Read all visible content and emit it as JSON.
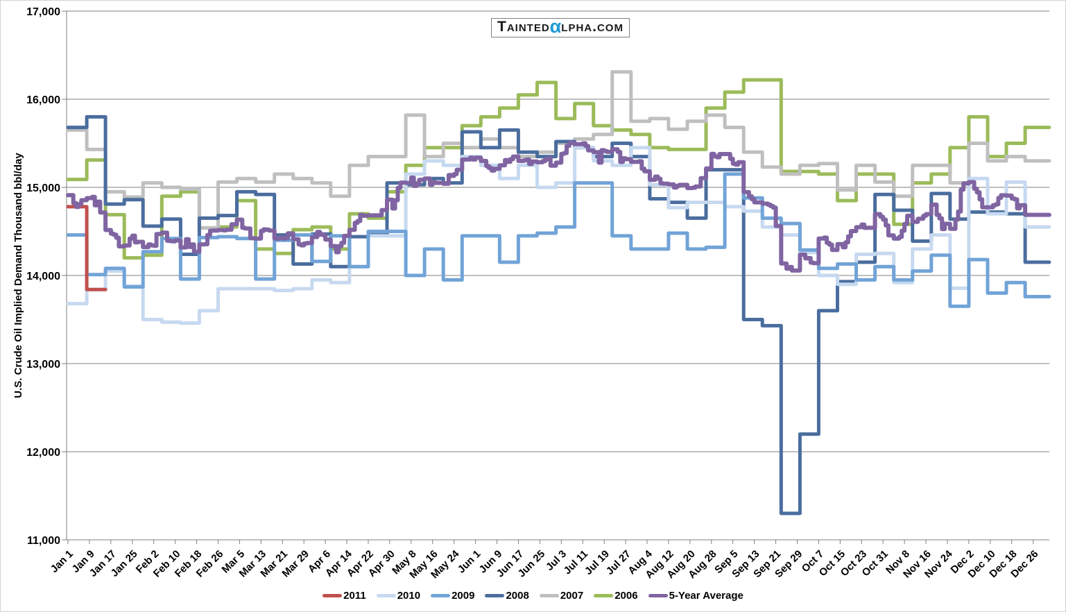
{
  "logo": {
    "part1": "Tainted",
    "alpha": "α",
    "part2": "lpha.com",
    "alpha_color": "#1e9ad6"
  },
  "y_axis": {
    "title": "U.S. Crude Oil Implied Demand Thousand bbl/day",
    "ticks": [
      "17,000",
      "16,000",
      "15,000",
      "14,000",
      "13,000",
      "12,000",
      "11,000"
    ],
    "min": 11000,
    "max": 17000,
    "step": 1000
  },
  "x_axis": {
    "labels": [
      "Jan 1",
      "Jan 9",
      "Jan 17",
      "Jan 25",
      "Feb 2",
      "Feb 10",
      "Feb 18",
      "Feb 26",
      "Mar 5",
      "Mar 13",
      "Mar 21",
      "Mar 29",
      "Apr 6",
      "Apr 14",
      "Apr 22",
      "Apr 30",
      "May 8",
      "May 16",
      "May 24",
      "Jun 1",
      "Jun 9",
      "Jun 17",
      "Jun 25",
      "Jul 3",
      "Jul 11",
      "Jul 19",
      "Jul 27",
      "Aug 4",
      "Aug 12",
      "Aug 20",
      "Aug 28",
      "Sep 5",
      "Sep 13",
      "Sep 21",
      "Sep 29",
      "Oct 7",
      "Oct 15",
      "Oct 23",
      "Oct 31",
      "Nov 8",
      "Nov 16",
      "Nov 24",
      "Dec 2",
      "Dec 10",
      "Dec 18",
      "Dec 26"
    ],
    "label_every_days": 8,
    "days_in_year": 366
  },
  "colors": {
    "grid": "#7f7f7f",
    "axis_text": "#000000",
    "background": "#ffffff"
  },
  "chart_data": {
    "type": "line",
    "title": "",
    "xlabel": "",
    "ylabel": "U.S. Crude Oil Implied Demand Thousand bbl/day",
    "ylim": [
      11000,
      17000
    ],
    "grid": true,
    "legend_position": "bottom",
    "x_description": "Daily step chart of weekly values, Jan 1 through Dec 31 (366 days); each weekly value held constant for 7 days",
    "series": [
      {
        "name": "2006",
        "color": "#9bbb59",
        "avg_phase": 2,
        "weekly_values": [
          15090,
          15310,
          14690,
          14200,
          14230,
          14900,
          14950,
          14540,
          14550,
          14850,
          14300,
          14250,
          14520,
          14550,
          14300,
          14700,
          14650,
          14950,
          15250,
          15450,
          15450,
          15700,
          15800,
          15900,
          16050,
          16190,
          15780,
          15950,
          15700,
          15650,
          15600,
          15450,
          15430,
          15430,
          15900,
          16080,
          16220,
          16220,
          15180,
          15180,
          15150,
          14850,
          15150,
          15150,
          14580,
          15050,
          15150,
          15450,
          15800,
          15350,
          15500,
          15680
        ]
      },
      {
        "name": "2007",
        "color": "#bfbfbf",
        "avg_phase": 4,
        "weekly_values": [
          15650,
          15430,
          14950,
          14890,
          15050,
          15000,
          14980,
          14540,
          15060,
          15100,
          15060,
          15150,
          15100,
          15050,
          14900,
          15250,
          15350,
          15350,
          15820,
          15350,
          15500,
          15450,
          15550,
          15450,
          15350,
          15400,
          15500,
          15550,
          15600,
          16310,
          15750,
          15780,
          15660,
          15750,
          15820,
          15680,
          15400,
          15230,
          15150,
          15250,
          15270,
          14970,
          15250,
          15060,
          14900,
          15250,
          15250,
          15050,
          15500,
          15300,
          15350,
          15300
        ]
      },
      {
        "name": "2008",
        "color": "#4a6d9e",
        "avg_phase": 0,
        "weekly_values": [
          15680,
          15800,
          14810,
          14860,
          14560,
          14640,
          14240,
          14650,
          14680,
          14950,
          14920,
          14460,
          14130,
          14470,
          14100,
          14440,
          14460,
          15050,
          15030,
          15100,
          15050,
          15630,
          15450,
          15650,
          15400,
          15350,
          15520,
          15450,
          15350,
          15500,
          15350,
          14870,
          14830,
          14650,
          15200,
          15200,
          13500,
          13430,
          11300,
          12200,
          13600,
          13930,
          14150,
          14920,
          14740,
          14390,
          14930,
          14640,
          14720,
          14720,
          14700,
          14150
        ]
      },
      {
        "name": "2010",
        "color": "#c6d9f0",
        "avg_phase": 3,
        "weekly_values": [
          13680,
          13840,
          14050,
          13880,
          13500,
          13470,
          13460,
          13600,
          13850,
          13850,
          13850,
          13830,
          13850,
          13950,
          13920,
          14100,
          14450,
          14450,
          15150,
          15300,
          15250,
          15350,
          15250,
          15100,
          15250,
          15000,
          15050,
          15450,
          15300,
          15250,
          15450,
          15030,
          14770,
          14830,
          14830,
          14780,
          14730,
          14550,
          14460,
          14260,
          14000,
          13900,
          14240,
          14250,
          13920,
          14300,
          14460,
          13855,
          15100,
          14700,
          15060,
          14550
        ]
      },
      {
        "name": "2009",
        "color": "#71a3d7",
        "avg_phase": 5,
        "weekly_values": [
          14460,
          14010,
          14080,
          13870,
          14270,
          14420,
          13960,
          14430,
          14440,
          14420,
          13960,
          14400,
          14460,
          14160,
          14450,
          14100,
          14500,
          14500,
          14000,
          14300,
          13950,
          14450,
          14450,
          14150,
          14450,
          14480,
          14550,
          15050,
          15050,
          14450,
          14300,
          14300,
          14480,
          14300,
          14320,
          15150,
          14880,
          14650,
          14590,
          14290,
          14080,
          14130,
          13950,
          14100,
          13950,
          14050,
          14230,
          13650,
          14180,
          13800,
          13920,
          13760
        ]
      },
      {
        "name": "2011",
        "color": "#c0504d",
        "avg_phase": 0,
        "weekly_values": [
          14780,
          13840
        ]
      }
    ],
    "average_series": {
      "name": "5-Year Average",
      "color": "#8064a2",
      "derived_from": [
        "2006",
        "2007",
        "2008",
        "2009",
        "2010"
      ]
    }
  },
  "legend": {
    "items": [
      {
        "label": "2011",
        "color": "#c0504d"
      },
      {
        "label": "2010",
        "color": "#c6d9f0"
      },
      {
        "label": "2009",
        "color": "#71a3d7"
      },
      {
        "label": "2008",
        "color": "#4a6d9e"
      },
      {
        "label": "2007",
        "color": "#bfbfbf"
      },
      {
        "label": "2006",
        "color": "#9bbb59"
      },
      {
        "label": "5-Year Average",
        "color": "#8064a2"
      }
    ]
  }
}
